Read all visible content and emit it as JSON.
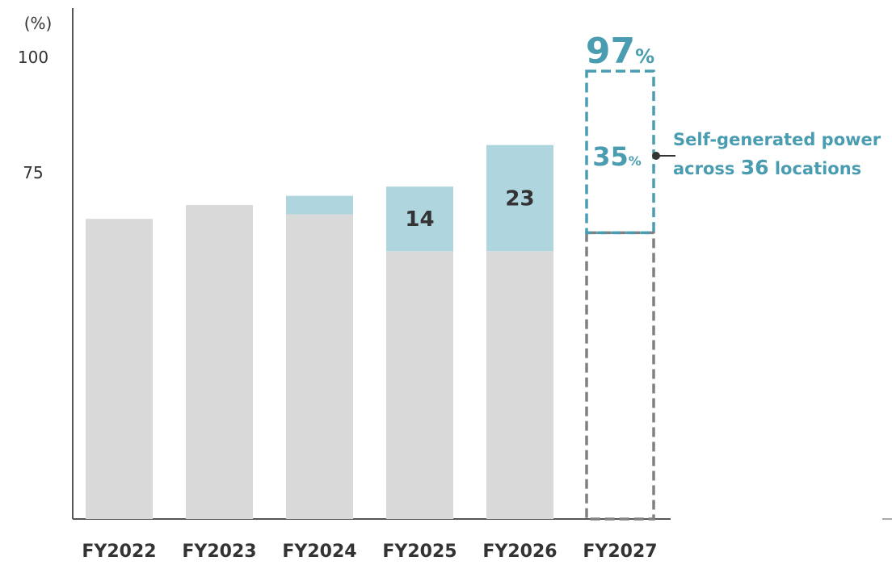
{
  "chart_data": {
    "type": "bar",
    "stacked": true,
    "ylabel": "(%)",
    "yticks": [
      100,
      75
    ],
    "ylim": [
      0,
      110
    ],
    "categories": [
      "FY2022",
      "FY2023",
      "FY2024",
      "FY2025",
      "FY2026",
      "FY2027"
    ],
    "series": [
      {
        "values": [
          65,
          68,
          66,
          58,
          58,
          62
        ],
        "color": "#d9d9d9"
      },
      {
        "values": [
          0,
          0,
          4,
          14,
          23,
          35
        ],
        "color": "#afd6df"
      }
    ],
    "data_labels": [
      "",
      "",
      "",
      "14",
      "23",
      "35"
    ],
    "target": {
      "category": "FY2027",
      "total_value": "97",
      "total_unit": "%",
      "segment_value": "35",
      "segment_unit": "%",
      "base_style": "dashed",
      "base_color": "#808080",
      "segment_color": "#4a9db0"
    },
    "annotation": {
      "prefix": "Self-generated power",
      "middle": "across ",
      "number": "36",
      "suffix": " locations",
      "color": "#4a9db0"
    },
    "grid": false,
    "legend": "none"
  }
}
